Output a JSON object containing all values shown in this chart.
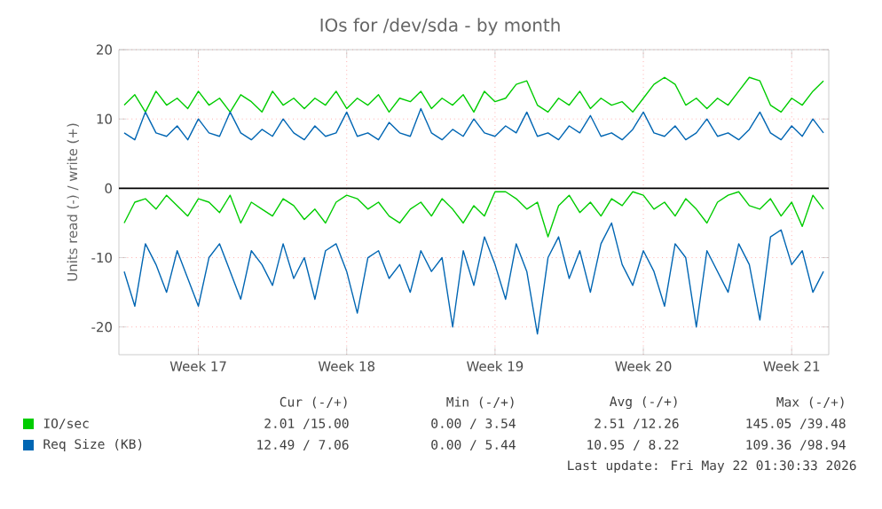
{
  "chart_data": {
    "type": "line",
    "title": "IOs for /dev/sda - by month",
    "ylabel": "Units read (-) / write (+)",
    "categories": [
      null,
      null,
      null,
      null,
      null,
      null,
      null,
      "Week 17",
      null,
      null,
      null,
      null,
      null,
      null,
      null,
      null,
      null,
      null,
      null,
      null,
      null,
      "Week 18",
      null,
      null,
      null,
      null,
      null,
      null,
      null,
      null,
      null,
      null,
      null,
      null,
      null,
      "Week 19",
      null,
      null,
      null,
      null,
      null,
      null,
      null,
      null,
      null,
      null,
      null,
      null,
      null,
      "Week 20",
      null,
      null,
      null,
      null,
      null,
      null,
      null,
      null,
      null,
      null,
      null,
      null,
      null,
      "Week 21",
      null,
      null,
      null
    ],
    "series": [
      {
        "name": "IO/sec",
        "color": "#00cc00",
        "values": [
          12,
          13.5,
          11,
          14,
          12,
          13,
          11.5,
          14,
          12,
          13,
          11,
          13.5,
          12.5,
          11,
          14,
          12,
          13,
          11.5,
          13,
          12,
          14,
          11.5,
          13,
          12,
          13.5,
          11,
          13,
          12.5,
          14,
          11.5,
          13,
          12,
          13.5,
          11,
          14,
          12.5,
          13,
          15,
          15.5,
          12,
          11,
          13,
          12,
          14,
          11.5,
          13,
          12,
          12.5,
          11,
          13,
          15,
          16,
          15,
          12,
          13,
          11.5,
          13,
          12,
          14,
          16,
          15.5,
          12,
          11,
          13,
          12,
          14,
          15.5
        ]
      },
      {
        "name": "Req Size (KB)",
        "color": "#0066b3",
        "values": [
          8,
          7,
          11,
          8,
          7.5,
          9,
          7,
          10,
          8,
          7.5,
          11,
          8,
          7,
          8.5,
          7.5,
          10,
          8,
          7,
          9,
          7.5,
          8,
          11,
          7.5,
          8,
          7,
          9.5,
          8,
          7.5,
          11.5,
          8,
          7,
          8.5,
          7.5,
          10,
          8,
          7.5,
          9,
          8,
          11,
          7.5,
          8,
          7,
          9,
          8,
          10.5,
          7.5,
          8,
          7,
          8.5,
          11,
          8,
          7.5,
          9,
          7,
          8,
          10,
          7.5,
          8,
          7,
          8.5,
          11,
          8,
          7,
          9,
          7.5,
          10,
          8
        ]
      },
      {
        "color": "#00cc00",
        "values": [
          -5,
          -2,
          -1.5,
          -3,
          -1,
          -2.5,
          -4,
          -1.5,
          -2,
          -3.5,
          -1,
          -5,
          -2,
          -3,
          -4,
          -1.5,
          -2.5,
          -4.5,
          -3,
          -5,
          -2,
          -1,
          -1.5,
          -3,
          -2,
          -4,
          -5,
          -3,
          -2,
          -4,
          -1.5,
          -3,
          -5,
          -2.5,
          -4,
          -0.5,
          -0.5,
          -1.5,
          -3,
          -2,
          -7,
          -2.5,
          -1,
          -3.5,
          -2,
          -4,
          -1.5,
          -2.5,
          -0.5,
          -1,
          -3,
          -2,
          -4,
          -1.5,
          -3,
          -5,
          -2,
          -1,
          -0.5,
          -2.5,
          -3,
          -1.5,
          -4,
          -2,
          -5.5,
          -1,
          -3
        ]
      },
      {
        "color": "#0066b3",
        "values": [
          -12,
          -17,
          -8,
          -11,
          -15,
          -9,
          -13,
          -17,
          -10,
          -8,
          -12,
          -16,
          -9,
          -11,
          -14,
          -8,
          -13,
          -10,
          -16,
          -9,
          -8,
          -12,
          -18,
          -10,
          -9,
          -13,
          -11,
          -15,
          -9,
          -12,
          -10,
          -20,
          -9,
          -14,
          -7,
          -11,
          -16,
          -8,
          -12,
          -21,
          -10,
          -7,
          -13,
          -9,
          -15,
          -8,
          -5,
          -11,
          -14,
          -9,
          -12,
          -17,
          -8,
          -10,
          -20,
          -9,
          -12,
          -15,
          -8,
          -11,
          -19,
          -7,
          -6,
          -11,
          -9,
          -15,
          -12
        ]
      }
    ],
    "ylim": [
      -24,
      20
    ],
    "yticks": [
      -20,
      -10,
      0,
      10,
      20
    ],
    "grid": true,
    "legend": "bottom",
    "marker": "none",
    "line_style": "solid",
    "ref_lines": [
      {
        "axis": "y",
        "value": 0,
        "color": "#000000"
      }
    ],
    "annotations": [
      "Cur (-/+)",
      "Min (-/+)",
      "Avg (-/+)",
      "Max (-/+)",
      "2.01 /15.00",
      "0.00 / 3.54",
      "2.51 /12.26",
      "145.05 /39.48",
      "12.49 / 7.06",
      "0.00 / 5.44",
      "10.95 / 8.22",
      "109.36 /98.94",
      "Last update: Fri May 22 01:30:33 2026"
    ]
  }
}
